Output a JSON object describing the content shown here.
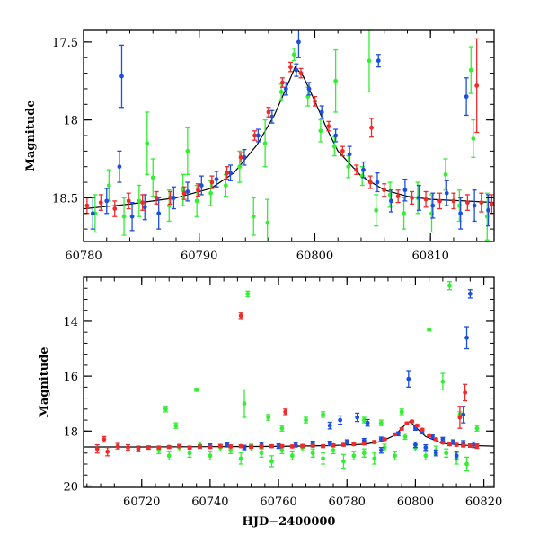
{
  "colors": {
    "green": "#33ee33",
    "blue": "#1a4fe0",
    "red": "#ee2b2b",
    "model": "#000000",
    "frame": "#000000"
  },
  "chart_data": [
    {
      "type": "scatter",
      "title": "",
      "xlabel": "",
      "ylabel": "Magnitude",
      "xlim": [
        60780,
        60815.5
      ],
      "ylim": [
        18.78,
        17.42
      ],
      "y_inverted": true,
      "x_ticks": [
        60780,
        60790,
        60800,
        60810
      ],
      "y_ticks": [
        17.5,
        18,
        18.5
      ],
      "x_tick_labels": [
        "60780",
        "60790",
        "60800",
        "60810"
      ],
      "y_tick_labels": [
        "17.5",
        "18",
        "18.5"
      ],
      "grid": false,
      "legend": "none",
      "model_curve": {
        "x": [
          60780,
          60784,
          60788,
          60791,
          60793,
          60795,
          60796.5,
          60797.5,
          60798.3,
          60799,
          60800,
          60801,
          60802,
          60804,
          60806,
          60808,
          60810,
          60813,
          60815.5
        ],
        "y": [
          18.57,
          18.54,
          18.5,
          18.44,
          18.34,
          18.16,
          17.97,
          17.8,
          17.66,
          17.72,
          17.88,
          18.05,
          18.2,
          18.36,
          18.45,
          18.49,
          18.51,
          18.52,
          18.53
        ]
      },
      "series": [
        {
          "name": "",
          "color": "green",
          "x": [
            60781.0,
            60782.2,
            60783.5,
            60784.8,
            60786.0,
            60787.4,
            60788.6,
            60789.8,
            60791.0,
            60792.3,
            60793.5,
            60794.7,
            60795.9,
            60797.1,
            60798.2,
            60799.4,
            60800.5,
            60801.7,
            60802.9,
            60804.1,
            60805.3,
            60806.5,
            60807.7,
            60808.9,
            60810.1,
            60811.3,
            60812.5,
            60813.7,
            60814.9,
            60785.5,
            60789.0,
            60795.7,
            60801.8,
            60804.7,
            60813.5
          ],
          "y": [
            18.6,
            18.42,
            18.62,
            18.52,
            18.37,
            18.55,
            18.45,
            18.52,
            18.47,
            18.42,
            18.3,
            18.62,
            18.66,
            17.82,
            17.58,
            17.85,
            18.07,
            18.17,
            18.3,
            18.36,
            18.58,
            18.48,
            18.6,
            18.5,
            18.6,
            18.35,
            18.55,
            18.12,
            18.62,
            18.15,
            18.2,
            18.15,
            17.75,
            17.62,
            17.68
          ],
          "err": [
            0.12,
            0.1,
            0.12,
            0.1,
            0.12,
            0.1,
            0.1,
            0.1,
            0.08,
            0.07,
            0.1,
            0.12,
            0.15,
            0.05,
            0.04,
            0.06,
            0.07,
            0.06,
            0.07,
            0.06,
            0.1,
            0.08,
            0.1,
            0.1,
            0.12,
            0.1,
            0.1,
            0.12,
            0.15,
            0.2,
            0.15,
            0.15,
            0.2,
            0.2,
            0.15
          ]
        },
        {
          "name": "",
          "color": "blue",
          "x": [
            60780.8,
            60782.0,
            60783.1,
            60784.2,
            60785.3,
            60786.5,
            60787.8,
            60789.0,
            60790.2,
            60791.5,
            60792.7,
            60793.9,
            60795.1,
            60796.3,
            60797.5,
            60798.4,
            60799.5,
            60800.6,
            60801.8,
            60803.0,
            60804.2,
            60805.4,
            60806.6,
            60807.8,
            60809.0,
            60810.2,
            60811.4,
            60812.6,
            60813.8,
            60815.0,
            60783.3,
            60798.6,
            60805.5,
            60813.1
          ],
          "y": [
            18.6,
            18.52,
            18.3,
            18.62,
            18.56,
            18.6,
            18.5,
            18.46,
            18.42,
            18.38,
            18.34,
            18.24,
            18.1,
            17.98,
            17.8,
            17.68,
            17.8,
            17.95,
            18.1,
            18.22,
            18.32,
            18.4,
            18.52,
            18.45,
            18.5,
            18.55,
            18.47,
            18.6,
            18.55,
            18.58,
            17.72,
            17.5,
            17.62,
            17.85
          ],
          "err": [
            0.1,
            0.08,
            0.1,
            0.09,
            0.08,
            0.1,
            0.07,
            0.06,
            0.06,
            0.05,
            0.05,
            0.05,
            0.04,
            0.04,
            0.04,
            0.04,
            0.04,
            0.04,
            0.04,
            0.05,
            0.05,
            0.06,
            0.07,
            0.07,
            0.08,
            0.08,
            0.08,
            0.1,
            0.1,
            0.1,
            0.2,
            0.1,
            0.04,
            0.12
          ]
        },
        {
          "name": "",
          "color": "red",
          "x": [
            60780.3,
            60781.5,
            60782.7,
            60783.9,
            60785.1,
            60786.3,
            60787.5,
            60788.7,
            60789.9,
            60791.1,
            60792.4,
            60793.6,
            60794.8,
            60796.0,
            60797.2,
            60797.9,
            60798.8,
            60800.0,
            60801.2,
            60802.4,
            60803.6,
            60804.8,
            60806.0,
            60807.2,
            60808.4,
            60809.6,
            60810.8,
            60812.0,
            60813.2,
            60814.4,
            60815.3,
            60804.9,
            60814.0
          ],
          "y": [
            18.55,
            18.53,
            18.57,
            18.52,
            18.53,
            18.5,
            18.5,
            18.47,
            18.45,
            18.4,
            18.34,
            18.24,
            18.1,
            17.95,
            17.76,
            17.66,
            17.7,
            17.88,
            18.04,
            18.2,
            18.32,
            18.4,
            18.45,
            18.49,
            18.5,
            18.51,
            18.52,
            18.52,
            18.53,
            18.53,
            18.54,
            18.05,
            17.78
          ],
          "err": [
            0.05,
            0.05,
            0.05,
            0.05,
            0.05,
            0.04,
            0.04,
            0.04,
            0.04,
            0.04,
            0.04,
            0.03,
            0.03,
            0.03,
            0.03,
            0.03,
            0.03,
            0.03,
            0.03,
            0.03,
            0.03,
            0.04,
            0.04,
            0.04,
            0.04,
            0.05,
            0.05,
            0.05,
            0.05,
            0.06,
            0.06,
            0.06,
            0.3
          ]
        }
      ]
    },
    {
      "type": "scatter",
      "title": "",
      "xlabel": "HJD−2400000",
      "ylabel": "Magnitude",
      "xlim": [
        60703,
        60823
      ],
      "ylim": [
        20.05,
        12.4
      ],
      "y_inverted": true,
      "x_ticks": [
        60720,
        60740,
        60760,
        60780,
        60800,
        60820
      ],
      "y_ticks": [
        14,
        16,
        18,
        20
      ],
      "x_tick_labels": [
        "60720",
        "60740",
        "60760",
        "60780",
        "60800",
        "60820"
      ],
      "y_tick_labels": [
        "14",
        "16",
        "18",
        "20"
      ],
      "grid": false,
      "legend": "none",
      "model_curve": {
        "x": [
          60703,
          60720,
          60740,
          60760,
          60775,
          60785,
          60790,
          60794,
          60796,
          60797.5,
          60798.5,
          60800,
          60803,
          60808,
          60815,
          60823
        ],
        "y": [
          18.58,
          18.58,
          18.57,
          18.56,
          18.53,
          18.48,
          18.38,
          18.15,
          17.9,
          17.7,
          17.65,
          17.85,
          18.2,
          18.45,
          18.52,
          18.55
        ]
      },
      "series": [
        {
          "name": "",
          "color": "green",
          "x": [
            60725.0,
            60728.0,
            60731.0,
            60734.0,
            60737.0,
            60740.0,
            60743.0,
            60746.0,
            60749.0,
            60752.0,
            60755.0,
            60758.0,
            60761.0,
            60764.0,
            60767.0,
            60770.0,
            60773.0,
            60776.0,
            60779.0,
            60782.0,
            60785.0,
            60788.0,
            60791.0,
            60794.0,
            60797.0,
            60800.0,
            60803.0,
            60806.0,
            60809.0,
            60812.0,
            60815.0,
            60727.0,
            60730.0,
            60736.0,
            60750.0,
            60751.0,
            60757.0,
            60761.0,
            60768.0,
            60773.0,
            60785.0,
            60790.0,
            60796.0,
            60804.0,
            60808.0,
            60810.0,
            60813.0,
            60818.0
          ],
          "y": [
            18.7,
            18.9,
            18.6,
            18.8,
            18.5,
            18.9,
            18.6,
            18.7,
            19.0,
            18.6,
            18.8,
            19.1,
            18.7,
            18.9,
            18.6,
            18.8,
            19.0,
            18.7,
            19.1,
            18.9,
            18.8,
            19.0,
            18.6,
            18.9,
            18.2,
            18.6,
            18.9,
            18.7,
            18.8,
            19.0,
            19.2,
            17.2,
            17.8,
            16.5,
            17.0,
            13.0,
            17.5,
            17.9,
            17.6,
            17.4,
            17.6,
            17.7,
            17.3,
            14.3,
            16.2,
            12.7,
            17.4,
            17.9
          ],
          "err": [
            0.12,
            0.15,
            0.12,
            0.15,
            0.1,
            0.15,
            0.12,
            0.12,
            0.2,
            0.12,
            0.15,
            0.2,
            0.12,
            0.15,
            0.12,
            0.15,
            0.2,
            0.12,
            0.25,
            0.15,
            0.15,
            0.2,
            0.12,
            0.15,
            0.1,
            0.12,
            0.15,
            0.15,
            0.15,
            0.2,
            0.25,
            0.1,
            0.1,
            0.05,
            0.5,
            0.1,
            0.1,
            0.1,
            0.1,
            0.1,
            0.1,
            0.1,
            0.1,
            0.05,
            0.3,
            0.15,
            0.1,
            0.1
          ]
        },
        {
          "name": "",
          "color": "blue",
          "x": [
            60740.0,
            60745.0,
            60750.0,
            60755.0,
            60760.0,
            60765.0,
            60770.0,
            60775.0,
            60780.0,
            60785.0,
            60790.0,
            60795.0,
            60800.0,
            60802.0,
            60805.0,
            60808.0,
            60811.0,
            60814.0,
            60817.0,
            60775.0,
            60778.0,
            60783.0,
            60786.0,
            60798.0,
            60814.0,
            60815.0,
            60816.0,
            60790.0,
            60800.0,
            60803.0,
            60806.0,
            60812.0
          ],
          "y": [
            18.55,
            18.5,
            18.6,
            18.5,
            18.55,
            18.5,
            18.45,
            18.45,
            18.4,
            18.35,
            18.3,
            18.1,
            17.9,
            18.0,
            18.2,
            18.3,
            18.4,
            18.45,
            18.5,
            17.8,
            17.6,
            17.5,
            17.7,
            16.1,
            17.4,
            14.6,
            13.0,
            18.7,
            18.5,
            18.6,
            18.8,
            18.9
          ],
          "err": [
            0.08,
            0.08,
            0.08,
            0.08,
            0.08,
            0.08,
            0.08,
            0.08,
            0.08,
            0.08,
            0.08,
            0.07,
            0.07,
            0.07,
            0.07,
            0.07,
            0.08,
            0.1,
            0.1,
            0.12,
            0.15,
            0.15,
            0.12,
            0.3,
            0.3,
            0.4,
            0.15,
            0.1,
            0.1,
            0.1,
            0.1,
            0.15
          ]
        },
        {
          "name": "",
          "color": "red",
          "x": [
            60707.0,
            60710.0,
            60713.0,
            60716.0,
            60719.0,
            60722.0,
            60725.0,
            60728.0,
            60731.0,
            60734.0,
            60737.0,
            60740.0,
            60743.0,
            60746.0,
            60749.0,
            60752.0,
            60755.0,
            60758.0,
            60761.0,
            60764.0,
            60767.0,
            60770.0,
            60773.0,
            60776.0,
            60779.0,
            60782.0,
            60785.0,
            60788.0,
            60791.0,
            60794.0,
            60796.0,
            60797.5,
            60799.0,
            60800.5,
            60802.0,
            60804.0,
            60806.0,
            60808.0,
            60810.0,
            60812.0,
            60814.0,
            60816.0,
            60818.0,
            60709.0,
            60749.0,
            60762.0,
            60814.5,
            60813.0
          ],
          "y": [
            18.65,
            18.75,
            18.55,
            18.6,
            18.65,
            18.6,
            18.6,
            18.58,
            18.55,
            18.6,
            18.57,
            18.58,
            18.55,
            18.56,
            18.55,
            18.57,
            18.56,
            18.55,
            18.55,
            18.56,
            18.55,
            18.53,
            18.55,
            18.52,
            18.5,
            18.48,
            18.45,
            18.4,
            18.3,
            18.12,
            17.92,
            17.72,
            17.65,
            17.8,
            17.95,
            18.15,
            18.3,
            18.42,
            18.48,
            18.5,
            18.52,
            18.53,
            18.55,
            18.3,
            13.8,
            17.3,
            16.6,
            17.5
          ],
          "err": [
            0.15,
            0.15,
            0.1,
            0.1,
            0.1,
            0.06,
            0.05,
            0.05,
            0.05,
            0.05,
            0.05,
            0.05,
            0.05,
            0.05,
            0.05,
            0.05,
            0.05,
            0.05,
            0.05,
            0.05,
            0.05,
            0.05,
            0.05,
            0.05,
            0.05,
            0.05,
            0.05,
            0.05,
            0.04,
            0.04,
            0.04,
            0.04,
            0.04,
            0.04,
            0.04,
            0.04,
            0.04,
            0.04,
            0.05,
            0.05,
            0.06,
            0.06,
            0.08,
            0.1,
            0.1,
            0.1,
            0.3,
            0.4
          ]
        }
      ]
    }
  ]
}
